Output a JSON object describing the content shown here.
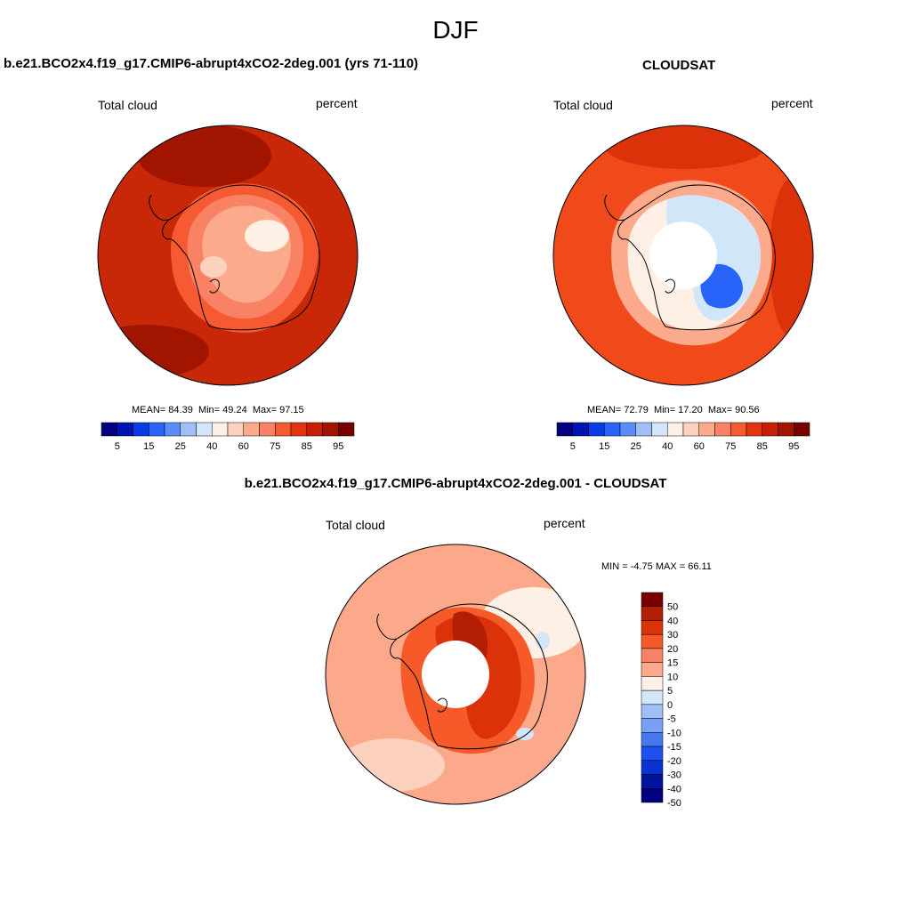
{
  "page": {
    "title": "DJF"
  },
  "panels": [
    {
      "id": "model",
      "title": "b.e21.BCO2x4.f19_g17.CMIP6-abrupt4xCO2-2deg.001 (yrs 71-110)",
      "variable_label": "Total cloud",
      "units_label": "percent",
      "stats": {
        "mean_label": "MEAN=",
        "mean": "84.39",
        "min_label": "Min=",
        "min": "49.24",
        "max_label": "Max=",
        "max": "97.15"
      },
      "map": {
        "projection": "south-polar-stereographic",
        "pole_hole": false,
        "base_color": "#c82807",
        "levels": [
          40,
          50,
          60,
          70,
          75,
          80,
          85,
          90,
          95
        ]
      }
    },
    {
      "id": "obs",
      "title": "CLOUDSAT",
      "variable_label": "Total cloud",
      "units_label": "percent",
      "stats": {
        "mean_label": "MEAN=",
        "mean": "72.79",
        "min_label": "Min=",
        "min": "17.20",
        "max_label": "Max=",
        "max": "90.56"
      },
      "map": {
        "projection": "south-polar-stereographic",
        "pole_hole": true,
        "base_color": "#f04a1a",
        "levels": [
          20,
          25,
          30,
          40,
          50,
          60,
          70,
          75,
          80,
          85,
          90
        ]
      }
    },
    {
      "id": "diff",
      "title": "b.e21.BCO2x4.f19_g17.CMIP6-abrupt4xCO2-2deg.001 - CLOUDSAT",
      "variable_label": "Total cloud",
      "units_label": "percent",
      "stats": {
        "text": "MIN = -4.75 MAX = 66.11"
      },
      "map": {
        "projection": "south-polar-stereographic",
        "pole_hole": true,
        "base_color": "#fca88a",
        "levels": [
          -5,
          0,
          5,
          10,
          15,
          20,
          30,
          40,
          50
        ]
      }
    }
  ],
  "colorbars": {
    "abs": {
      "orientation": "horizontal",
      "colors": [
        "#000080",
        "#0014b4",
        "#0a3ce6",
        "#2864fa",
        "#5a8cfa",
        "#a0bef8",
        "#d2e6fa",
        "#fff0e6",
        "#fcd2be",
        "#fcaa8c",
        "#fa8264",
        "#f55a32",
        "#e6330f",
        "#c81e05",
        "#a01400",
        "#780000"
      ],
      "tick_labels": [
        "5",
        "15",
        "25",
        "40",
        "60",
        "75",
        "85",
        "95"
      ]
    },
    "diff": {
      "orientation": "vertical",
      "colors_top_to_bottom": [
        "#780000",
        "#b41e05",
        "#dc320a",
        "#f55a28",
        "#fa8264",
        "#fcaa8c",
        "#fff0e6",
        "#d2e6fa",
        "#a0bef8",
        "#78a0f5",
        "#4678f0",
        "#1e50f0",
        "#0a32d2",
        "#0014a0",
        "#000080"
      ],
      "tick_labels": [
        "50",
        "40",
        "30",
        "20",
        "15",
        "10",
        "5",
        "0",
        "-5",
        "-10",
        "-15",
        "-20",
        "-30",
        "-40",
        "-50"
      ]
    }
  }
}
